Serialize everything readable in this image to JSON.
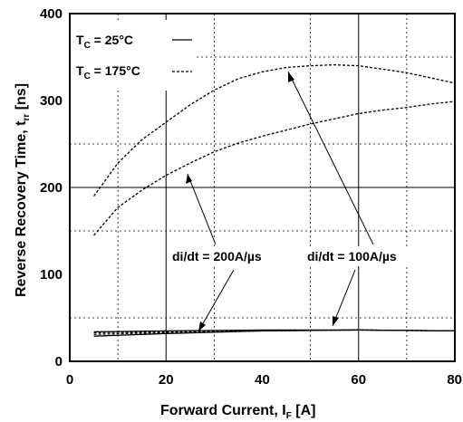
{
  "chart_data": {
    "type": "line",
    "xlabel": {
      "main": "Forward Current, I",
      "sub": "F",
      "unit": " [A]"
    },
    "ylabel": {
      "main": "Reverse Recovery Time, t",
      "sub": "rr",
      "unit": " [ns]"
    },
    "xlim": [
      0,
      80
    ],
    "ylim": [
      0,
      400
    ],
    "xticks": [
      "0",
      "20",
      "40",
      "60",
      "80"
    ],
    "yticks": [
      "0",
      "100",
      "200",
      "300",
      "400"
    ],
    "grid": "dashed minor, solid major",
    "legend": {
      "placement": "top-left",
      "entries": [
        {
          "label_main": "T",
          "label_sub": "C",
          "label_rest": " = 25°C",
          "style": "solid"
        },
        {
          "label_main": "T",
          "label_sub": "C",
          "label_rest": " = 175°C",
          "style": "dashed"
        }
      ]
    },
    "annotations": [
      {
        "text": "di/dt = 200A/µs"
      },
      {
        "text": "di/dt = 100A/µs"
      }
    ],
    "series": [
      {
        "condition": "175°C, 100A/µs",
        "style": "dashed",
        "x": [
          5,
          10,
          15,
          20,
          25,
          30,
          35,
          40,
          45,
          50,
          55,
          60,
          65,
          70,
          75,
          80
        ],
        "y": [
          190,
          228,
          255,
          275,
          295,
          312,
          325,
          333,
          338,
          340,
          341,
          340,
          336,
          332,
          326,
          320
        ]
      },
      {
        "condition": "175°C, 200A/µs",
        "style": "dashed",
        "x": [
          5,
          10,
          15,
          20,
          25,
          30,
          35,
          40,
          45,
          50,
          55,
          60,
          65,
          70,
          75,
          80
        ],
        "y": [
          145,
          177,
          197,
          214,
          228,
          241,
          251,
          259,
          266,
          273,
          279,
          285,
          289,
          292,
          296,
          299
        ]
      },
      {
        "condition": "25°C, 100A/µs",
        "style": "solid",
        "x": [
          5,
          20,
          40,
          60,
          80
        ],
        "y": [
          34,
          35,
          36,
          36,
          35
        ]
      },
      {
        "condition": "25°C, 200A/µs",
        "style": "solid",
        "x": [
          5,
          20,
          40,
          60,
          80
        ],
        "y": [
          29,
          32,
          35,
          36,
          35
        ]
      },
      {
        "condition": "175°C, 100A/µs low",
        "style": "dashed",
        "x": [
          5,
          20,
          40,
          60,
          80
        ],
        "y": [
          33,
          34,
          35,
          36,
          35
        ]
      },
      {
        "condition": "175°C, 200A/µs low",
        "style": "dashed",
        "x": [
          5,
          20,
          40,
          60,
          80
        ],
        "y": [
          31,
          33,
          35,
          36,
          35
        ]
      }
    ]
  }
}
